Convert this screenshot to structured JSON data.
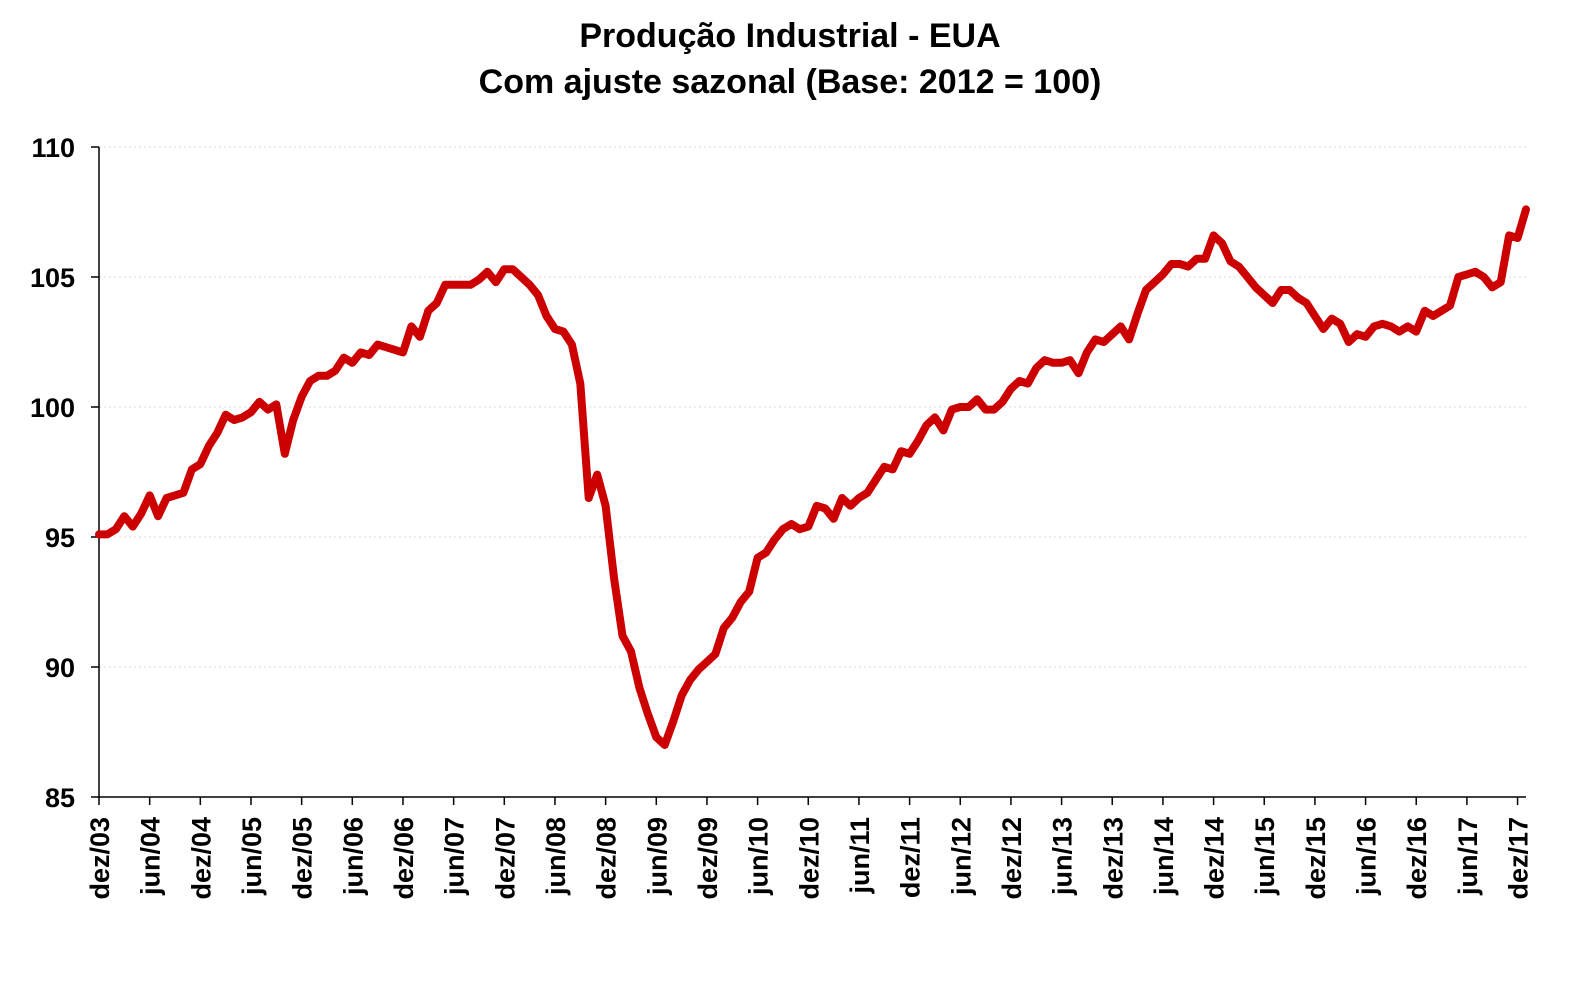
{
  "chart_data": {
    "type": "line",
    "title": "Produção Industrial - EUA",
    "subtitle": "Com ajuste sazonal (Base: 2012 = 100)",
    "xlabel": "",
    "ylabel": "",
    "ylim": [
      85,
      110
    ],
    "yticks": [
      85,
      90,
      95,
      100,
      105,
      110
    ],
    "grid": true,
    "x_tick_labels": [
      "dez/03",
      "jun/04",
      "dez/04",
      "jun/05",
      "dez/05",
      "jun/06",
      "dez/06",
      "jun/07",
      "dez/07",
      "jun/08",
      "dez/08",
      "jun/09",
      "dez/09",
      "jun/10",
      "dez/10",
      "jun/11",
      "dez/11",
      "jun/12",
      "dez/12",
      "jun/13",
      "dez/13",
      "jun/14",
      "dez/14",
      "jun/15",
      "dez/15",
      "jun/16",
      "dez/16",
      "jun/17",
      "dez/17"
    ],
    "x_range": [
      "dez/03",
      "dez/17"
    ],
    "series": [
      {
        "color": "#cc0000",
        "start": "dez/03",
        "frequency": "monthly",
        "values": [
          95.1,
          95.1,
          95.3,
          95.8,
          95.4,
          95.9,
          96.6,
          95.8,
          96.5,
          96.6,
          96.7,
          97.6,
          97.8,
          98.5,
          99.0,
          99.7,
          99.5,
          99.6,
          99.8,
          100.2,
          99.9,
          100.1,
          98.2,
          99.5,
          100.4,
          101.0,
          101.2,
          101.2,
          101.4,
          101.9,
          101.7,
          102.1,
          102.0,
          102.4,
          102.3,
          102.2,
          102.1,
          103.1,
          102.7,
          103.7,
          104.0,
          104.7,
          104.7,
          104.7,
          104.7,
          104.9,
          105.2,
          104.8,
          105.3,
          105.3,
          105.0,
          104.7,
          104.3,
          103.5,
          103.0,
          102.9,
          102.4,
          100.9,
          96.5,
          97.4,
          96.2,
          93.4,
          91.2,
          90.6,
          89.2,
          88.2,
          87.3,
          87.0,
          87.9,
          88.9,
          89.5,
          89.9,
          90.2,
          90.5,
          91.5,
          91.9,
          92.5,
          92.9,
          94.2,
          94.4,
          94.9,
          95.3,
          95.5,
          95.3,
          95.4,
          96.2,
          96.1,
          95.7,
          96.5,
          96.2,
          96.5,
          96.7,
          97.2,
          97.7,
          97.6,
          98.3,
          98.2,
          98.7,
          99.3,
          99.6,
          99.1,
          99.9,
          100.0,
          100.0,
          100.3,
          99.9,
          99.9,
          100.2,
          100.7,
          101.0,
          100.9,
          101.5,
          101.8,
          101.7,
          101.7,
          101.8,
          101.3,
          102.1,
          102.6,
          102.5,
          102.8,
          103.1,
          102.6,
          103.6,
          104.5,
          104.8,
          105.1,
          105.5,
          105.5,
          105.4,
          105.7,
          105.7,
          106.6,
          106.3,
          105.6,
          105.4,
          105.0,
          104.6,
          104.3,
          104.0,
          104.5,
          104.5,
          104.2,
          104.0,
          103.5,
          103.0,
          103.4,
          103.2,
          102.5,
          102.8,
          102.7,
          103.1,
          103.2,
          103.1,
          102.9,
          103.1,
          102.9,
          103.7,
          103.5,
          103.7,
          103.9,
          105.0,
          105.1,
          105.2,
          105.0,
          104.6,
          104.8,
          106.6,
          106.5,
          107.6
        ]
      }
    ]
  }
}
